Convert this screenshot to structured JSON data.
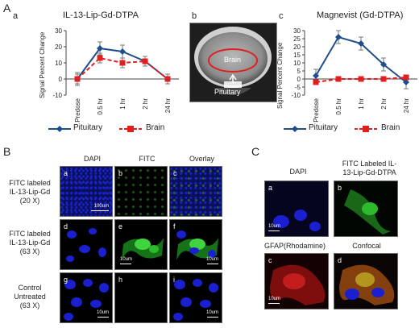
{
  "figure": {
    "panel_A": "A",
    "panel_B": "B",
    "panel_C": "C"
  },
  "panelA": {
    "a_label": "a",
    "b_label": "b",
    "c_label": "c",
    "mri": {
      "brain": "Brain",
      "pituitary": "Pituitary"
    }
  },
  "chart_data": [
    {
      "type": "line",
      "title": "IL-13-Lip-Gd-DTPA",
      "categories": [
        "Predose",
        "0.5 hr",
        "1 hr",
        "2 hr",
        "24 hr"
      ],
      "ylabel": "Signal Percent Change",
      "ylim": [
        -10,
        30
      ],
      "yticks": [
        -10,
        0,
        10,
        20,
        30
      ],
      "series": [
        {
          "name": "Pituitary",
          "color": "#1f4e8c",
          "values": [
            0,
            19,
            17,
            11,
            0
          ],
          "err": [
            4,
            4,
            4,
            3,
            3
          ]
        },
        {
          "name": "Brain",
          "color": "#e02020",
          "values": [
            0,
            13,
            10,
            11,
            0
          ],
          "err": [
            3,
            3,
            3,
            3,
            3
          ]
        }
      ]
    },
    {
      "type": "line",
      "title": "Magnevist (Gd-DTPA)",
      "categories": [
        "Predose",
        "0.5 hr",
        "1 hr",
        "2 hr",
        "24 hr"
      ],
      "ylabel": "Signal Percent Change",
      "ylim": [
        -10,
        30
      ],
      "yticks": [
        -10,
        -5,
        0,
        5,
        10,
        15,
        20,
        25,
        30
      ],
      "series": [
        {
          "name": "Pituitary",
          "color": "#1f4e8c",
          "values": [
            2,
            26,
            22,
            9,
            -2
          ],
          "err": [
            4,
            4,
            4,
            4,
            4
          ]
        },
        {
          "name": "Brain",
          "color": "#e02020",
          "values": [
            -2,
            0,
            0,
            0,
            1
          ],
          "err": [
            1,
            1,
            1,
            1,
            1
          ]
        }
      ]
    }
  ],
  "panelB": {
    "cols": [
      "DAPI",
      "FITC",
      "Overlay"
    ],
    "rows": [
      {
        "label1": "FITC labeled",
        "label2": "IL-13-Lip-Gd",
        "label3": "(20 X)",
        "cells": [
          "a",
          "b",
          "c"
        ],
        "scale": "100um"
      },
      {
        "label1": "FITC labeled",
        "label2": "IL-13-Lip-Gd",
        "label3": "(63 X)",
        "cells": [
          "d",
          "e",
          "f"
        ],
        "scale": "10um"
      },
      {
        "label1": "Control",
        "label2": "Untreated",
        "label3": "(63 X)",
        "cells": [
          "g",
          "h",
          "i"
        ],
        "scale": "10um"
      }
    ]
  },
  "panelC": {
    "head_a": "DAPI",
    "head_b1": "FITC Labeled IL-",
    "head_b2": "13-Lip-Gd-DTPA",
    "head_c": "GFAP(Rhodamine)",
    "head_d": "Confocal",
    "cells": [
      "a",
      "b",
      "c",
      "d"
    ],
    "scale": "10um"
  },
  "colors": {
    "dapi": "#1a1fd0",
    "fitc": "#2dbb2d",
    "rhodamine": "#c21d1d",
    "pituitary": "#1f4e8c",
    "brain": "#e02020"
  }
}
